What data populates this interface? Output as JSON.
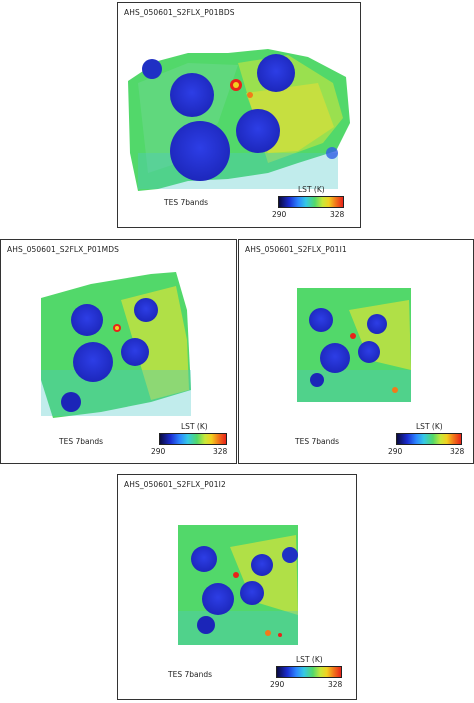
{
  "panels": [
    {
      "title": "AHS_050601_S2FLX_P01BDS",
      "caption": "TES 7bands"
    },
    {
      "title": "AHS_050601_S2FLX_P01MDS",
      "caption": "TES 7bands"
    },
    {
      "title": "AHS_050601_S2FLX_P01I1",
      "caption": "TES 7bands"
    },
    {
      "title": "AHS_050601_S2FLX_P01I2",
      "caption": "TES 7bands"
    }
  ],
  "colorbar": {
    "label": "LST (K)",
    "min": "290",
    "max": "328"
  },
  "colors": {
    "low": "#1a2cd0",
    "mid": "#52d86a",
    "high": "#e8231a"
  }
}
